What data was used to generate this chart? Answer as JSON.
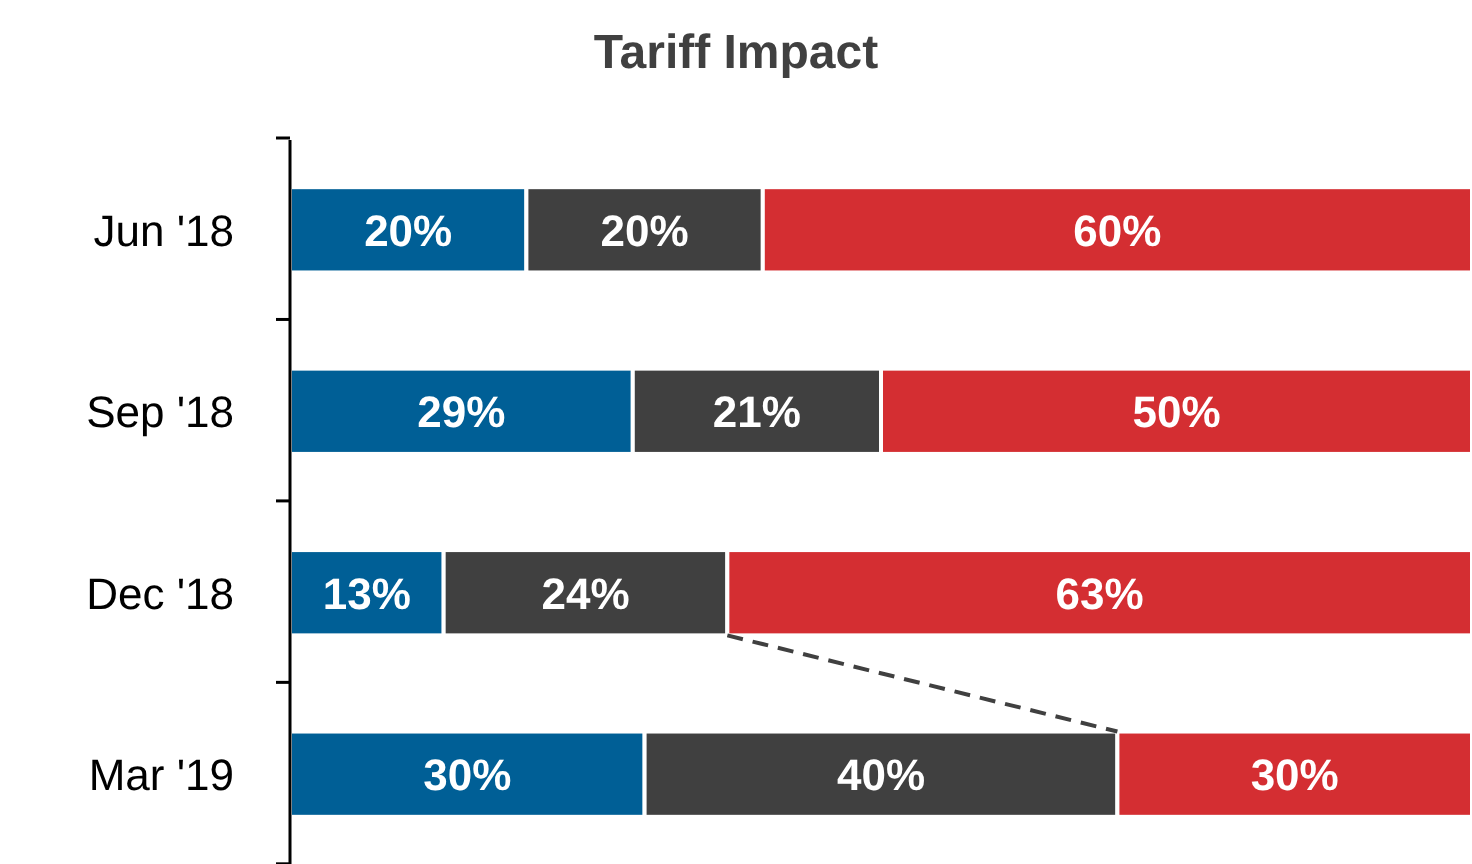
{
  "chart_data": {
    "type": "bar",
    "title": "Tariff Impact",
    "orientation": "horizontal",
    "stacked": true,
    "categories": [
      "Jun '18",
      "Sep '18",
      "Dec '18",
      "Mar '19"
    ],
    "series": [
      {
        "color": "#005f96",
        "values": [
          20,
          29,
          13,
          30
        ],
        "value_labels": [
          "20%",
          "29%",
          "13%",
          "30%"
        ]
      },
      {
        "color": "#404040",
        "values": [
          20,
          21,
          24,
          40
        ],
        "value_labels": [
          "20%",
          "21%",
          "24%",
          "40%"
        ]
      },
      {
        "color": "#d42e32",
        "values": [
          60,
          50,
          63,
          30
        ],
        "value_labels": [
          "60%",
          "50%",
          "63%",
          "30%"
        ]
      }
    ]
  }
}
